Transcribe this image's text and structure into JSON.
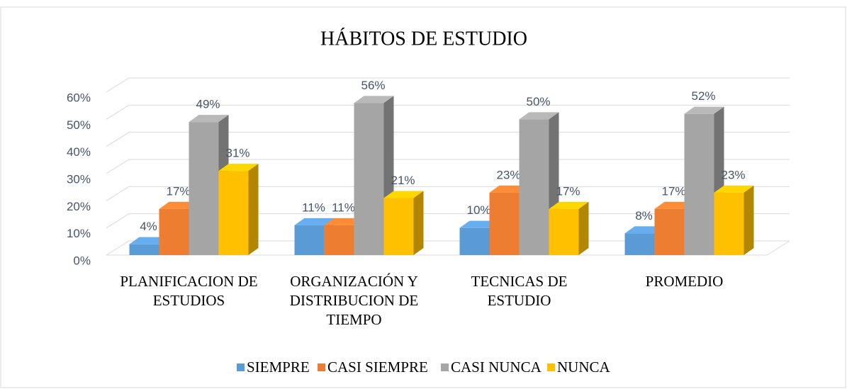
{
  "chart_data": {
    "type": "bar3d",
    "title": "HÁBITOS DE ESTUDIO",
    "categories": [
      "PLANIFICACION DE ESTUDIOS",
      "ORGANIZACIÓN Y DISTRIBUCION DE TIEMPO",
      "TECNICAS DE ESTUDIO",
      "PROMEDIO"
    ],
    "series": [
      {
        "name": "SIEMPRE",
        "color": "#5b9bd5",
        "values": [
          4,
          11,
          10,
          8
        ],
        "value_labels": [
          "4%",
          "11%",
          "10%",
          "8%"
        ]
      },
      {
        "name": "CASI SIEMPRE",
        "color": "#ed7d31",
        "values": [
          17,
          11,
          23,
          17
        ],
        "value_labels": [
          "17%",
          "11%",
          "23%",
          "17%"
        ]
      },
      {
        "name": "CASI NUNCA",
        "color": "#a5a5a5",
        "values": [
          49,
          56,
          50,
          52
        ],
        "value_labels": [
          "49%",
          "56%",
          "50%",
          "52%"
        ]
      },
      {
        "name": "NUNCA",
        "color": "#ffc000",
        "values": [
          31,
          21,
          17,
          23
        ],
        "value_labels": [
          "31%",
          "21%",
          "17%",
          "23%"
        ]
      }
    ],
    "ylim": [
      0,
      60
    ],
    "yticks": [
      {
        "value": 0,
        "label": "0%"
      },
      {
        "value": 10,
        "label": "10%"
      },
      {
        "value": 20,
        "label": "20%"
      },
      {
        "value": 30,
        "label": "30%"
      },
      {
        "value": 40,
        "label": "40%"
      },
      {
        "value": 50,
        "label": "50%"
      },
      {
        "value": 60,
        "label": "60%"
      }
    ],
    "grid": true,
    "legend": "bottom"
  }
}
